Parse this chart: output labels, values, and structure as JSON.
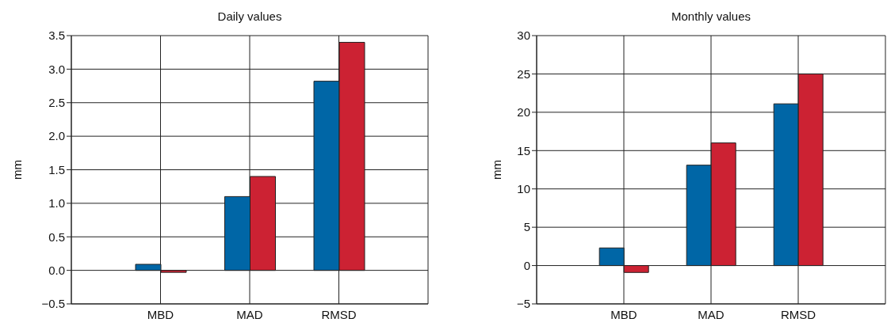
{
  "chart_data": [
    {
      "type": "bar",
      "title": "Daily values",
      "ylabel": "mm",
      "categories": [
        "MBD",
        "MAD",
        "RMSD"
      ],
      "series": [
        {
          "color": "#0066a6",
          "values": [
            0.09,
            1.1,
            2.82
          ]
        },
        {
          "color": "#cc2233",
          "values": [
            -0.03,
            1.4,
            3.4
          ]
        }
      ],
      "ylim": [
        -0.5,
        3.5
      ],
      "yticks": [
        {
          "value": -0.5,
          "label": "−0.5"
        },
        {
          "value": 0,
          "label": "0.0"
        },
        0.5,
        {
          "value": 1,
          "label": "1.0"
        },
        1.5,
        {
          "value": 2,
          "label": "2.0"
        },
        2.5,
        {
          "value": 3,
          "label": "3.0"
        },
        3.5
      ],
      "grid": true
    },
    {
      "type": "bar",
      "title": "Monthly values",
      "ylabel": "mm",
      "categories": [
        "MBD",
        "MAD",
        "RMSD"
      ],
      "series": [
        {
          "color": "#0066a6",
          "values": [
            2.3,
            13.1,
            21.1
          ]
        },
        {
          "color": "#cc2233",
          "values": [
            -0.9,
            16.0,
            25.0
          ]
        }
      ],
      "ylim": [
        -5,
        30
      ],
      "yticks": [
        {
          "value": -5,
          "label": "−5"
        },
        0,
        5,
        10,
        15,
        20,
        25,
        30
      ],
      "grid": true
    }
  ]
}
